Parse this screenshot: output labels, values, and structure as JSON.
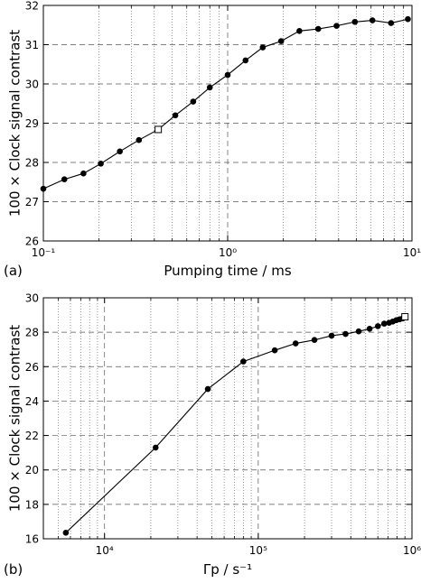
{
  "figure": {
    "panel_labels": [
      "(a)",
      "(b)"
    ]
  },
  "chart_data": [
    {
      "type": "line",
      "panel": "(a)",
      "xlabel": "Pumping time / ms",
      "ylabel": "100 × Clock signal contrast",
      "xscale": "log",
      "xlim": [
        0.1,
        10
      ],
      "ylim": [
        26,
        32
      ],
      "xticks": [
        0.1,
        1,
        10
      ],
      "xtick_labels": [
        "10⁻¹",
        "10⁰",
        "10¹"
      ],
      "yticks": [
        26,
        27,
        28,
        29,
        30,
        31,
        32
      ],
      "ytick_labels": [
        "26",
        "27",
        "28",
        "29",
        "30",
        "31",
        "32"
      ],
      "grid": true,
      "series": [
        {
          "marker": "filled-circle",
          "x": [
            0.1,
            0.13,
            0.165,
            0.205,
            0.26,
            0.33,
            0.42,
            0.52,
            0.65,
            0.8,
            1.0,
            1.25,
            1.55,
            1.95,
            2.45,
            3.1,
            3.9,
            4.9,
            6.1,
            7.7,
            9.5
          ],
          "y": [
            27.33,
            27.57,
            27.72,
            27.97,
            28.28,
            28.57,
            28.84,
            29.2,
            29.55,
            29.91,
            30.23,
            30.6,
            30.93,
            31.09,
            31.35,
            31.4,
            31.48,
            31.58,
            31.62,
            31.55,
            31.65
          ]
        }
      ],
      "highlight": {
        "marker": "open-square",
        "x": 0.42,
        "y": 28.84
      }
    },
    {
      "type": "line",
      "panel": "(b)",
      "xlabel": "Γp / s⁻¹",
      "ylabel": "100 × Clock signal contrast",
      "xscale": "log",
      "xlim": [
        4000,
        1000000
      ],
      "ylim": [
        16,
        30
      ],
      "xticks": [
        10000,
        100000,
        1000000
      ],
      "xtick_labels": [
        "10⁴",
        "10⁵",
        "10⁶"
      ],
      "yticks": [
        16,
        18,
        20,
        22,
        24,
        26,
        28,
        30
      ],
      "ytick_labels": [
        "16",
        "18",
        "20",
        "22",
        "24",
        "26",
        "28",
        "30"
      ],
      "grid": true,
      "series": [
        {
          "marker": "filled-circle",
          "x": [
            5600,
            21500,
            47000,
            80000,
            128000,
            175000,
            232000,
            300000,
            370000,
            450000,
            530000,
            600000,
            660000,
            710000,
            750000,
            790000,
            830000,
            870000
          ],
          "y": [
            16.35,
            21.3,
            24.7,
            26.3,
            26.95,
            27.35,
            27.55,
            27.8,
            27.9,
            28.05,
            28.2,
            28.35,
            28.5,
            28.55,
            28.62,
            28.7,
            28.75,
            28.8
          ]
        }
      ],
      "highlight": {
        "marker": "open-square",
        "x": 900000,
        "y": 28.9
      }
    }
  ]
}
